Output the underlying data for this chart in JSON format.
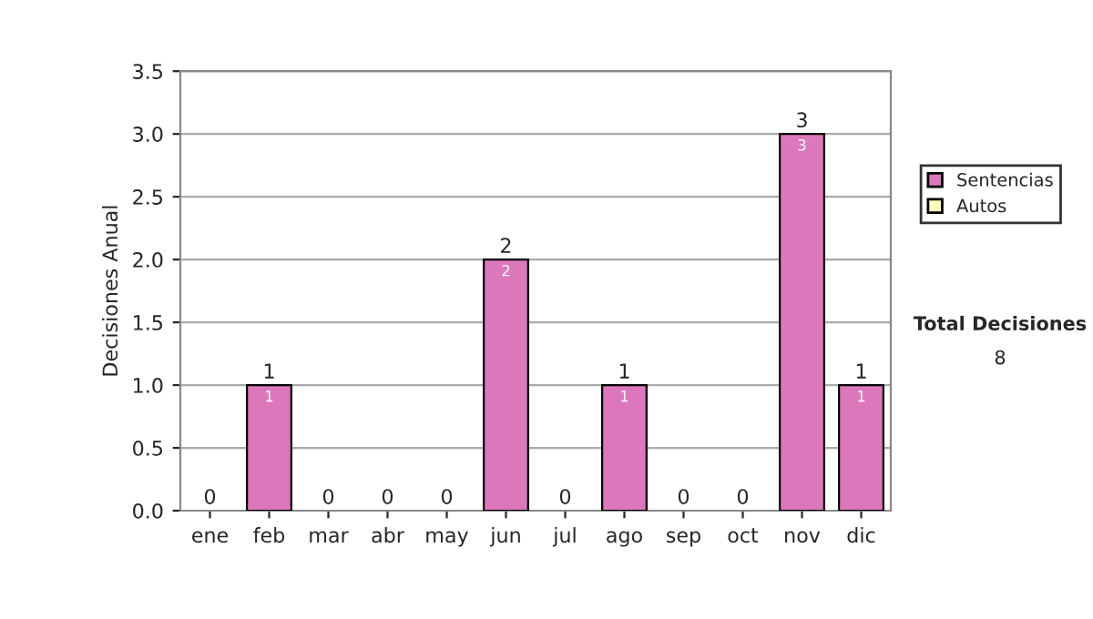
{
  "chart_data": {
    "type": "bar",
    "ylabel": "Decisiones Anual",
    "categories": [
      "ene",
      "feb",
      "mar",
      "abr",
      "may",
      "jun",
      "jul",
      "ago",
      "sep",
      "oct",
      "nov",
      "dic"
    ],
    "stacked": true,
    "series": [
      {
        "name": "Sentencias",
        "color": "#dd77bb",
        "values": [
          0,
          1,
          0,
          0,
          0,
          2,
          0,
          1,
          0,
          0,
          3,
          1
        ],
        "value_labels": [
          null,
          "1",
          null,
          null,
          null,
          "2",
          null,
          "1",
          null,
          null,
          "3",
          "1"
        ]
      },
      {
        "name": "Autos",
        "color": "#ffffbb",
        "values": [
          0,
          0,
          0,
          0,
          0,
          0,
          0,
          0,
          0,
          0,
          0,
          0
        ]
      }
    ],
    "totals": [
      "0",
      "1",
      "0",
      "0",
      "0",
      "2",
      "0",
      "1",
      "0",
      "0",
      "3",
      "1"
    ],
    "ylim": [
      0,
      3.5
    ],
    "yticks": [
      {
        "value": 0,
        "label": "0.0"
      },
      {
        "value": 0.5,
        "label": "0.5"
      },
      {
        "value": 1,
        "label": "1.0"
      },
      {
        "value": 1.5,
        "label": "1.5"
      },
      {
        "value": 2,
        "label": "2.0"
      },
      {
        "value": 2.5,
        "label": "2.5"
      },
      {
        "value": 3,
        "label": "3.0"
      },
      {
        "value": 3.5,
        "label": "3.5"
      }
    ],
    "grid": "y",
    "legend": "right",
    "annotations": [
      "Total Decisiones",
      "8"
    ]
  }
}
